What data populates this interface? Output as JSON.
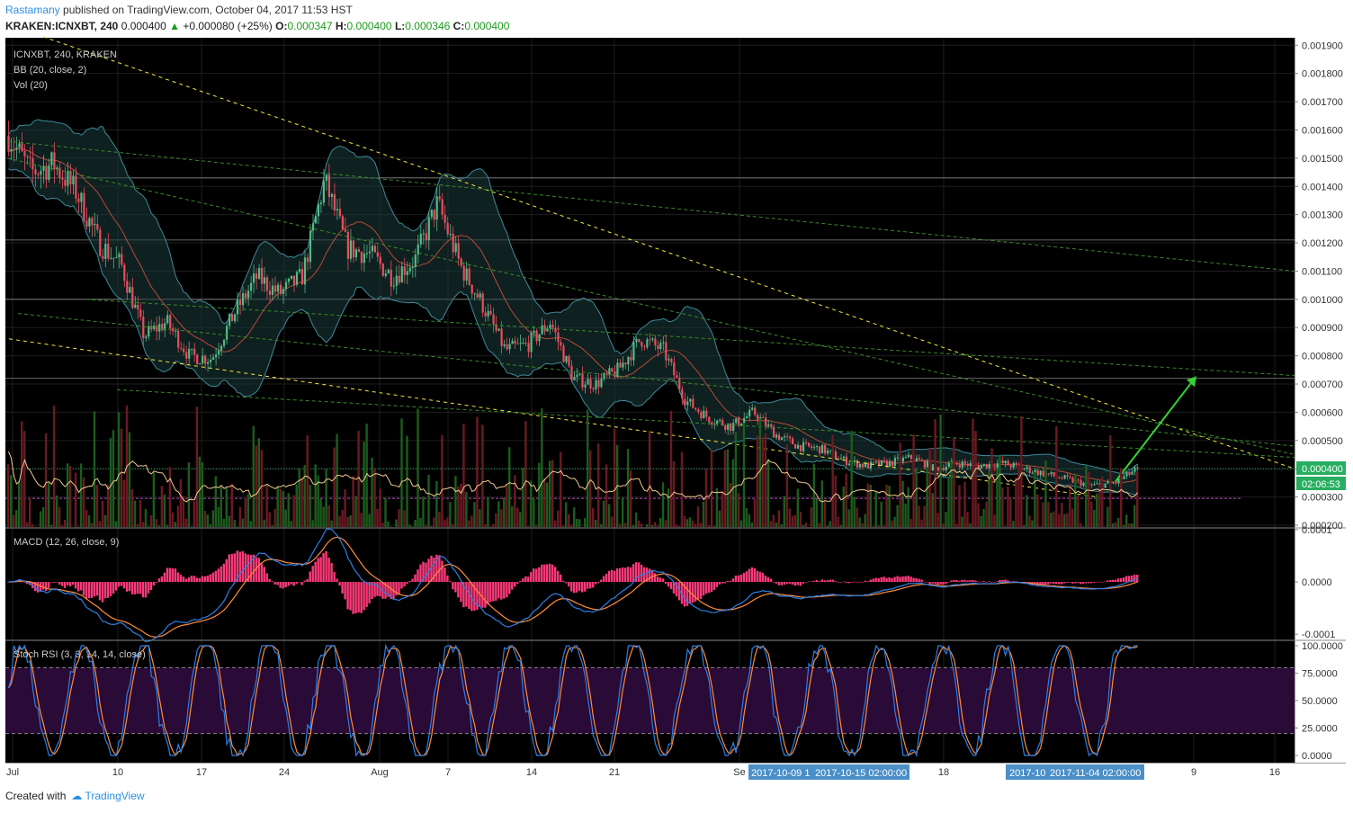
{
  "header": {
    "user": "Rastamany",
    "published": " published on TradingView.com, October 04, 2017 11:53 HST",
    "symbol_line": "KRAKEN:ICNXBT, 240",
    "last": "0.000400",
    "change": "+0.000080 (+25%)",
    "o_label": "O:",
    "o": "0.000347",
    "h_label": "H:",
    "h": "0.000400",
    "l_label": "L:",
    "l": "0.000346",
    "c_label": "C:",
    "c": "0.000400"
  },
  "legend": {
    "title": "ICNXBT, 240, KRAKEN",
    "bb": "BB (20, close, 2)",
    "vol": "Vol (20)",
    "macd": "MACD (12, 26, close, 9)",
    "stoch": "Stoch RSI (3, 3, 14, 14, close)"
  },
  "price_badge": "0.000400",
  "timer_badge": "02:06:53",
  "time_badges": [
    "2017-10-09 1",
    "2017-10-15 02:00:00",
    "2017-10",
    "2017-11-04 02:00:00"
  ],
  "footer": {
    "created": "Created with",
    "brand": "TradingView"
  },
  "colors": {
    "background": "#000000",
    "up": "#53b987",
    "down": "#eb4d5c",
    "bb_band": "#3d8a9b",
    "bb_mid": "#b84a3a",
    "trend_yellow": "#f5ea3a",
    "trend_green": "#3a8a2a",
    "arrow": "#32d232",
    "macd": "#2c7fe5",
    "signal": "#ff8c3a",
    "hist": "#ff3a7a",
    "stoch_k": "#2c7fe5",
    "stoch_d": "#ff8c3a",
    "stoch_band": "#2a0a36",
    "badge": "#27ae60",
    "time_badge": "#4a8fc8"
  },
  "chart_data": [
    {
      "type": "candlestick",
      "title": "ICNXBT, 240, KRAKEN",
      "x_ticks": [
        "Jul",
        "10",
        "17",
        "24",
        "Aug",
        "7",
        "14",
        "21",
        "Se",
        "18",
        "9",
        "16"
      ],
      "y_ticks": [
        "0.001900",
        "0.001800",
        "0.001700",
        "0.001600",
        "0.001500",
        "0.001400",
        "0.001300",
        "0.001200",
        "0.001100",
        "0.001000",
        "0.000900",
        "0.000800",
        "0.000700",
        "0.000600",
        "0.000500",
        "0.000400",
        "0.000300",
        "0.000200"
      ],
      "ylim": [
        0.0002,
        0.00192
      ],
      "close_path_x": [
        0,
        0.02,
        0.04,
        0.06,
        0.08,
        0.1,
        0.12,
        0.14,
        0.16,
        0.18,
        0.2,
        0.22,
        0.24,
        0.26,
        0.28,
        0.3,
        0.32,
        0.34,
        0.36,
        0.38,
        0.4,
        0.42,
        0.44,
        0.46,
        0.48,
        0.5,
        0.52,
        0.54,
        0.56,
        0.58,
        0.6,
        0.62,
        0.64,
        0.66,
        0.68,
        0.7,
        0.72,
        0.74,
        0.76,
        0.78,
        0.8,
        0.82,
        0.84,
        0.86,
        0.88,
        0.9,
        0.92,
        0.94,
        0.96,
        0.98,
        1.0
      ],
      "close_path_y": [
        0.00158,
        0.00145,
        0.00148,
        0.00138,
        0.0012,
        0.00112,
        0.00087,
        0.00092,
        0.0008,
        0.00079,
        0.00095,
        0.00108,
        0.00102,
        0.00108,
        0.00142,
        0.00118,
        0.00116,
        0.00108,
        0.00114,
        0.00134,
        0.00112,
        0.00098,
        0.00082,
        0.00084,
        0.00092,
        0.00072,
        0.0007,
        0.00075,
        0.00086,
        0.00082,
        0.00064,
        0.00058,
        0.00055,
        0.0006,
        0.00052,
        0.00048,
        0.00047,
        0.00043,
        0.00041,
        0.00042,
        0.00044,
        0.0004,
        0.00042,
        0.00041,
        0.00042,
        0.0004,
        0.00038,
        0.00036,
        0.00034,
        0.00035,
        0.0004
      ],
      "last_price": 0.0004
    },
    {
      "type": "line",
      "title": "MACD (12, 26, close, 9)",
      "y_ticks": [
        "0.0001",
        "0.0000",
        "-0.0001"
      ],
      "ylim": [
        -0.00011,
        0.0001
      ]
    },
    {
      "type": "line",
      "title": "Stoch RSI (3, 3, 14, 14, close)",
      "y_ticks": [
        "100.0000",
        "75.0000",
        "50.0000",
        "25.0000",
        "0.0000"
      ],
      "ylim": [
        0,
        100
      ],
      "band": [
        20,
        80
      ]
    }
  ]
}
